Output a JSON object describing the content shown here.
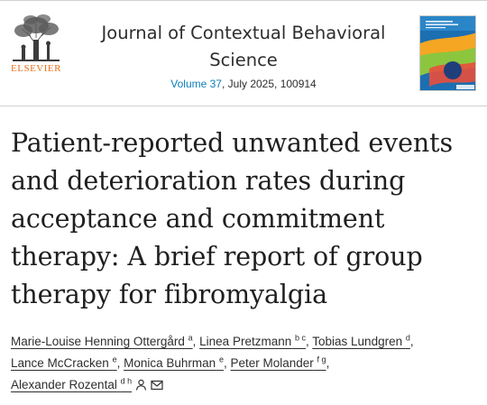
{
  "publisher": {
    "name": "ELSEVIER",
    "logo_icon": "elsevier-tree-icon"
  },
  "journal": {
    "title_line1": "Journal of Contextual Behavioral",
    "title_line2": "Science",
    "volume_link": "Volume 37",
    "issue_info": ", July 2025, 100914",
    "cover_icon": "journal-cover-thumbnail",
    "colors": {
      "link": "#0c7dbb",
      "publisher": "#e9711c",
      "cover": "#1c6fb1"
    }
  },
  "article": {
    "title_lines": [
      "Patient-reported unwanted events",
      "and deterioration rates during",
      "acceptance and commitment",
      "therapy: A brief report of group",
      "therapy for fibromyalgia"
    ]
  },
  "authors": [
    {
      "name": "Marie-Louise Henning Ottergård",
      "aff": "a"
    },
    {
      "name": "Linea Pretzmann",
      "aff": "b c"
    },
    {
      "name": "Tobias Lundgren",
      "aff": "d"
    },
    {
      "name": "Lance McCracken",
      "aff": "e"
    },
    {
      "name": "Monica Buhrman",
      "aff": "e"
    },
    {
      "name": "Peter Molander",
      "aff": "f g"
    },
    {
      "name": "Alexander Rozental",
      "aff": "d h",
      "icons": [
        "person-icon",
        "envelope-icon"
      ]
    }
  ]
}
